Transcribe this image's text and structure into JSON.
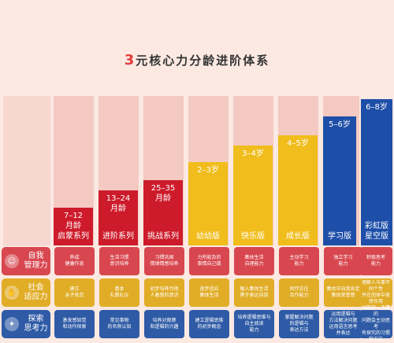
{
  "title": {
    "num": "3",
    "text": "元核心力分龄进阶体系"
  },
  "columns": [
    {
      "age": "7–12\n月龄",
      "series": "启蒙系列",
      "color": "red"
    },
    {
      "age": "13–24\n月龄",
      "series": "进阶系列",
      "color": "red"
    },
    {
      "age": "25–35\n月龄",
      "series": "挑战系列",
      "color": "red"
    },
    {
      "age": "2–3岁",
      "series": "幼幼版",
      "color": "yellow"
    },
    {
      "age": "3–4岁",
      "series": "快乐版",
      "color": "yellow"
    },
    {
      "age": "4–5岁",
      "series": "成长版",
      "color": "yellow"
    },
    {
      "age": "5–6岁",
      "series": "学习版",
      "color": "blue"
    },
    {
      "age": "6–8岁",
      "series": "彩虹版\n星空版",
      "color": "blue"
    }
  ],
  "rows": [
    {
      "label": "自我\n管理力",
      "icon": "user-icon",
      "cells": [
        "养成\n健康作息",
        "生活习惯\n意识培养",
        "习惯巩固\n情绪情感培养",
        "力所能及的\n事情自己做",
        "集体生活\n自理能力",
        "主动学习\n能力",
        "独立学习\n能力",
        "积极思考\n能力"
      ]
    },
    {
      "label": "社会\n适应力",
      "icon": "hands-icon",
      "cells": [
        "建立\n亲子依恋",
        "基本\n礼貌礼仪",
        "初步培养为他\n人着想的意识",
        "逐步适应\n集体生活",
        "融入集体生活\n勇于表达自我",
        "同伴交往\n合作能力",
        "集体中自我肯定\n集体荣誉感",
        "理解人与事不同个性\n并在团体中发挥作用"
      ]
    },
    {
      "label": "探索\n思考力",
      "icon": "lightbulb-icon",
      "cells": [
        "激发感知觉\n和动作探索",
        "常见事物\n的名称认知",
        "培养对观察\n和逻辑的兴趣",
        "建立逻辑思维\n的初步概念",
        "培养逻辑思维与\n自主阅读\n能力",
        "掌握解决问题\n的逻辑与\n表达方法",
        "运用逻辑与\n方法解决问题\n运用语言思考\n并表达",
        "对新的、不懂的\n问题会主动思考\n有探究的习惯\n和方法"
      ]
    }
  ]
}
